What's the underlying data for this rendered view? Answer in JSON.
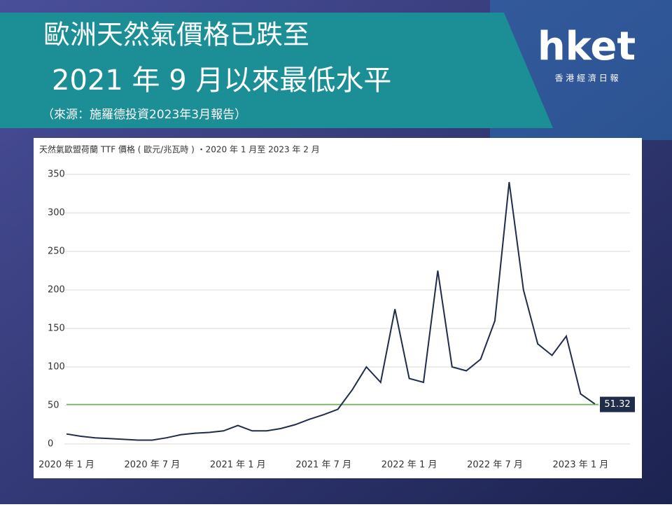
{
  "header": {
    "title_line1": "歐洲天然氣價格已跌至",
    "title_line2": "2021 年 9 月以來最低水平",
    "source": "（來源：施羅德投資2023年3月報告）",
    "logo": "hket",
    "logo_sub": "香 港 經 濟 日 報"
  },
  "chart_data": {
    "type": "line",
    "title": "天然氣歐盟荷蘭 TTF 價格 ( 歐元/兆瓦時 ) ・2020 年 1 月至 2023 年 2 月",
    "x": [
      "2020-01",
      "2020-02",
      "2020-03",
      "2020-04",
      "2020-05",
      "2020-06",
      "2020-07",
      "2020-08",
      "2020-09",
      "2020-10",
      "2020-11",
      "2020-12",
      "2021-01",
      "2021-02",
      "2021-03",
      "2021-04",
      "2021-05",
      "2021-06",
      "2021-07",
      "2021-08",
      "2021-09",
      "2021-10",
      "2021-11",
      "2021-12",
      "2022-01",
      "2022-02",
      "2022-03",
      "2022-04",
      "2022-05",
      "2022-06",
      "2022-07",
      "2022-08",
      "2022-09",
      "2022-10",
      "2022-11",
      "2022-12",
      "2023-01",
      "2023-02"
    ],
    "series": [
      {
        "name": "TTF",
        "color": "#1f2d4a",
        "values": [
          13,
          10,
          8,
          7,
          6,
          5,
          5,
          8,
          12,
          14,
          15,
          17,
          24,
          17,
          17,
          20,
          25,
          32,
          38,
          45,
          70,
          100,
          80,
          175,
          85,
          80,
          225,
          100,
          95,
          110,
          160,
          340,
          200,
          130,
          115,
          140,
          65,
          52
        ]
      }
    ],
    "xticks": [
      {
        "value": "2020-01",
        "label": "2020 年 1 月"
      },
      {
        "value": "2020-07",
        "label": "2020 年 7 月"
      },
      {
        "value": "2021-01",
        "label": "2021 年 1 月"
      },
      {
        "value": "2021-07",
        "label": "2021 年 7 月"
      },
      {
        "value": "2022-01",
        "label": "2022 年 1 月"
      },
      {
        "value": "2022-07",
        "label": "2022 年 7 月"
      },
      {
        "value": "2023-01",
        "label": "2023 年 1 月"
      }
    ],
    "ylim": [
      0,
      350
    ],
    "yticks": [
      0,
      50,
      100,
      150,
      200,
      250,
      300,
      350
    ],
    "grid": true,
    "reference": {
      "value": 51.32,
      "color": "#6ab04c"
    }
  }
}
